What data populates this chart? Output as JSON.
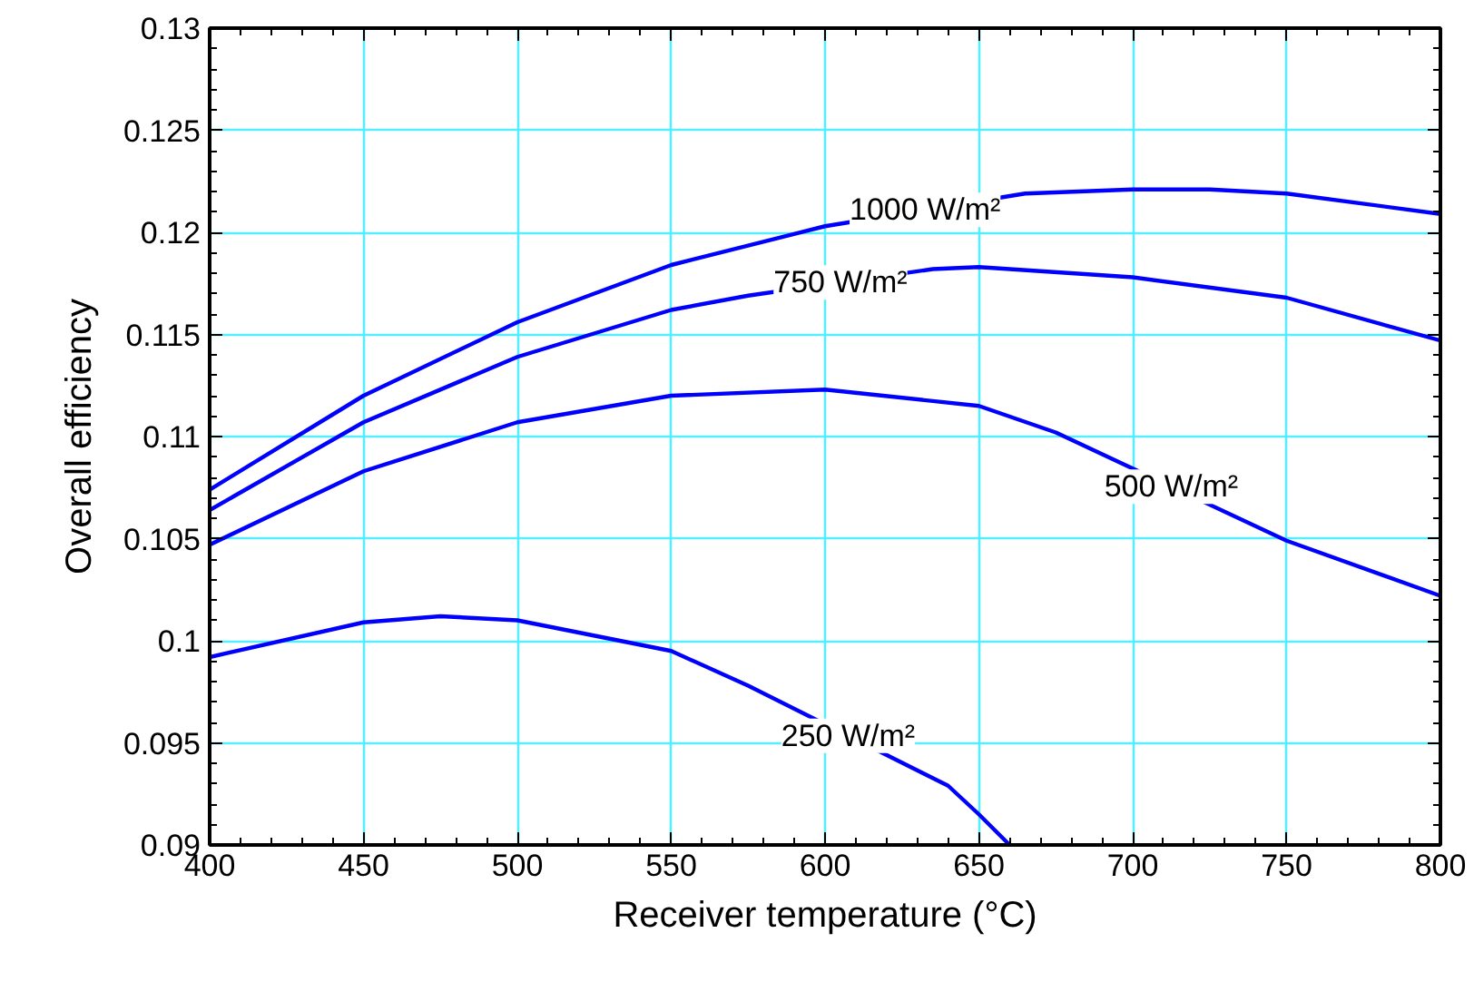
{
  "chart_data": {
    "type": "line",
    "xlabel": "Receiver temperature (°C)",
    "ylabel": "Overall efficiency",
    "xlim": [
      400,
      800
    ],
    "ylim": [
      0.09,
      0.13
    ],
    "xticks": [
      400,
      450,
      500,
      550,
      600,
      650,
      700,
      750,
      800
    ],
    "yticks": [
      0.09,
      0.095,
      0.1,
      0.105,
      0.11,
      0.115,
      0.12,
      0.125,
      0.13
    ],
    "grid": true,
    "marker": "none",
    "line_style": "solid",
    "series": [
      {
        "color": "#0000ff",
        "x": [
          400,
          450,
          500,
          550,
          600,
          665,
          700,
          725,
          750,
          800
        ],
        "values": [
          0.1074,
          0.112,
          0.1156,
          0.1184,
          0.1203,
          0.1219,
          0.1221,
          0.1221,
          0.1219,
          0.1209
        ]
      },
      {
        "color": "#0000ff",
        "x": [
          400,
          450,
          500,
          550,
          575,
          635,
          650,
          700,
          750,
          800
        ],
        "values": [
          0.1064,
          0.1107,
          0.1139,
          0.1162,
          0.1169,
          0.1182,
          0.1183,
          0.1178,
          0.1168,
          0.1147
        ]
      },
      {
        "color": "#0000ff",
        "x": [
          400,
          450,
          500,
          550,
          600,
          650,
          675,
          750,
          800
        ],
        "values": [
          0.1047,
          0.1083,
          0.1107,
          0.112,
          0.1123,
          0.1115,
          0.1102,
          0.1049,
          0.1022
        ]
      },
      {
        "color": "#0000ff",
        "x": [
          400,
          450,
          475,
          500,
          550,
          575,
          640,
          650,
          660
        ],
        "values": [
          0.0992,
          0.1009,
          0.1012,
          0.101,
          0.0995,
          0.0978,
          0.0929,
          0.0915,
          0.09
        ]
      }
    ],
    "annotations": [
      "1000 W/m²",
      "750 W/m²",
      "500 W/m²",
      "250 W/m²"
    ]
  }
}
